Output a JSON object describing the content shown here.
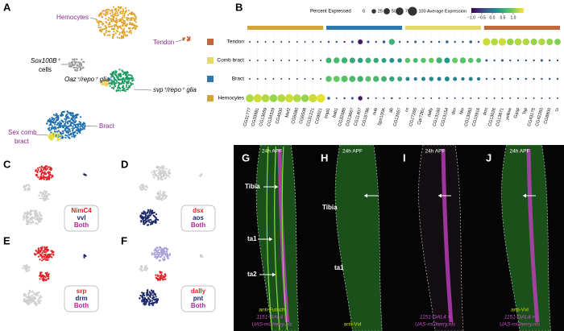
{
  "panel_labels": [
    "A",
    "B",
    "C",
    "D",
    "E",
    "F",
    "G",
    "H",
    "I",
    "J"
  ],
  "umap": {
    "hemocytes": "Hemocytes",
    "tendon": "Tendon",
    "sox": [
      "Sox100B⁺",
      "cells"
    ],
    "oaz_glia": "Oaz⁺/repo⁺ glia",
    "svp_glia": "svp⁺/repo⁺ glia",
    "sex_comb": [
      "Sex comb",
      "bract"
    ],
    "bract": "Bract"
  },
  "feature_plots": [
    {
      "genes": [
        {
          "name": "NimC4",
          "color": "#e32227"
        },
        {
          "name": "vvl",
          "color": "#1c2a6a"
        }
      ],
      "both": {
        "name": "Both",
        "color": "#b3238f"
      }
    },
    {
      "genes": [
        {
          "name": "dsx",
          "color": "#e32227"
        },
        {
          "name": "aos",
          "color": "#1c2a6a"
        }
      ],
      "both": {
        "name": "Both",
        "color": "#b3238f"
      }
    },
    {
      "genes": [
        {
          "name": "srp",
          "color": "#e32227"
        },
        {
          "name": "drm",
          "color": "#1c2a6a"
        }
      ],
      "both": {
        "name": "Both",
        "color": "#b3238f"
      }
    },
    {
      "genes": [
        {
          "name": "dally",
          "color": "#e32227"
        },
        {
          "name": "pnt",
          "color": "#1c2a6a"
        }
      ],
      "both": {
        "name": "Both",
        "color": "#b3238f"
      }
    }
  ],
  "microscopy": [
    {
      "time": "24h APF",
      "annotations": [
        "Tibia",
        "ta1",
        "ta2"
      ],
      "captions": [
        {
          "text": "anti-Futsch",
          "color": "#c8e000"
        },
        {
          "text": "1151-GAL4 >",
          "color": "#d050d0"
        },
        {
          "text": "UAS-mCherry.nls",
          "color": "#d050d0"
        }
      ]
    },
    {
      "time": "24h APF",
      "annotations": [
        "Tibia",
        "ta1"
      ],
      "captions": [
        {
          "text": "anti-Vvl",
          "color": "#c8e000"
        }
      ]
    },
    {
      "time": "24h APF",
      "annotations": [],
      "captions": [
        {
          "text": "1151-GAL4 >",
          "color": "#d050d0"
        },
        {
          "text": "UAS-mCherry.nls",
          "color": "#d050d0"
        }
      ]
    },
    {
      "time": "24h APF",
      "annotations": [],
      "captions": [
        {
          "text": "anti-Vvl",
          "color": "#c8e000"
        },
        {
          "text": "1151-GAL4 >",
          "color": "#d050d0"
        },
        {
          "text": "UAS-mCherry.nls",
          "color": "#d050d0"
        }
      ]
    }
  ],
  "chart_data": {
    "type": "dotplot",
    "size_title": "Percent Expressed",
    "color_title": "Average Expression",
    "size_ticks": [
      0,
      25,
      50,
      75,
      100
    ],
    "size_lim": [
      0,
      100
    ],
    "color_ticks": [
      {
        "value": -1,
        "label": "−1.0"
      },
      {
        "value": -0.5,
        "label": "−0.5"
      },
      {
        "value": 0,
        "label": "0.0"
      },
      {
        "value": 0.5,
        "label": "0.5"
      },
      {
        "value": 1,
        "label": "1.0"
      }
    ],
    "color_lim": [
      -1,
      1.5
    ],
    "colormap": [
      "#440154",
      "#3b528b",
      "#21918c",
      "#5ec962",
      "#fde725"
    ],
    "blocks": [
      {
        "color": "#d4a43c",
        "genes": [
          "CG31777",
          "CG33981",
          "CG13659",
          "CG34329",
          "CG4500",
          "Mef2",
          "CG5080",
          "CG6508",
          "CG31221",
          "CG9021"
        ]
      },
      {
        "color": "#2e78ad",
        "genes": [
          "Impl1",
          "bab1",
          "CG32085",
          "CG13667",
          "CG11407",
          "CG15786",
          "nub",
          "Spn100A",
          "ab",
          "CG12057"
        ]
      },
      {
        "color": "#e2d96a",
        "genes": [
          "rn",
          "CG17265",
          "Cpr72Ec",
          "dally",
          "CG13160",
          "CG13154",
          "dsx",
          "Ntx",
          "CG13083",
          "CG10916"
        ]
      },
      {
        "color": "#c06a3a",
        "genes": [
          "drm",
          "CG13026",
          "CG13871",
          "yellow",
          "Gasp",
          "Tsp",
          "CG43175",
          "CG42260",
          "CG8800",
          "tx"
        ]
      }
    ],
    "rows": [
      {
        "name": "Tendon",
        "color": "#c06a3a",
        "percent": [
          3,
          3,
          3,
          3,
          3,
          3,
          3,
          3,
          3,
          3,
          5,
          5,
          5,
          8,
          30,
          8,
          5,
          10,
          45,
          5,
          5,
          8,
          5,
          5,
          5,
          10,
          5,
          5,
          10,
          5,
          70,
          65,
          70,
          60,
          65,
          60,
          55,
          60,
          55,
          50
        ],
        "expression": [
          -0.6,
          -0.6,
          -0.6,
          -0.6,
          -0.6,
          -0.6,
          -0.6,
          -0.6,
          -0.6,
          -0.6,
          -0.4,
          -0.4,
          -0.5,
          -0.3,
          -0.8,
          -0.3,
          -0.4,
          -0.2,
          0.6,
          -0.4,
          -0.4,
          -0.3,
          -0.4,
          -0.4,
          -0.4,
          -0.2,
          -0.4,
          -0.4,
          -0.3,
          -0.4,
          1.3,
          1.2,
          1.3,
          1.1,
          1.2,
          1.2,
          1.1,
          1.2,
          1.1,
          1.0
        ]
      },
      {
        "name": "Comb bract",
        "color": "#e2d96a",
        "percent": [
          3,
          3,
          3,
          3,
          3,
          3,
          3,
          3,
          3,
          3,
          40,
          45,
          45,
          40,
          35,
          40,
          35,
          30,
          30,
          25,
          35,
          30,
          35,
          35,
          45,
          40,
          40,
          45,
          35,
          30,
          8,
          5,
          8,
          5,
          5,
          5,
          5,
          8,
          5,
          5
        ],
        "expression": [
          -0.6,
          -0.6,
          -0.6,
          -0.6,
          -0.6,
          -0.6,
          -0.6,
          -0.6,
          -0.6,
          -0.6,
          0.6,
          0.7,
          0.6,
          0.5,
          0.4,
          0.6,
          0.5,
          0.4,
          0.3,
          0.3,
          0.8,
          0.7,
          0.8,
          0.9,
          0.6,
          0.3,
          0.9,
          0.8,
          0.8,
          0.7,
          -0.3,
          -0.4,
          -0.3,
          -0.4,
          -0.4,
          -0.4,
          -0.4,
          -0.3,
          -0.4,
          -0.4
        ]
      },
      {
        "name": "Bract",
        "color": "#2e78ad",
        "percent": [
          3,
          3,
          3,
          3,
          3,
          3,
          3,
          3,
          3,
          3,
          45,
          50,
          55,
          50,
          45,
          40,
          45,
          40,
          35,
          30,
          20,
          15,
          20,
          25,
          20,
          30,
          20,
          15,
          20,
          15,
          5,
          5,
          5,
          5,
          5,
          5,
          5,
          5,
          5,
          5
        ],
        "expression": [
          -0.6,
          -0.6,
          -0.6,
          -0.6,
          -0.6,
          -0.6,
          -0.6,
          -0.6,
          -0.6,
          -0.6,
          0.8,
          0.9,
          0.8,
          0.7,
          0.6,
          0.8,
          0.7,
          0.6,
          0.5,
          0.5,
          0.1,
          0.0,
          0.1,
          0.2,
          0.0,
          0.2,
          0.1,
          0.0,
          0.1,
          0.0,
          -0.4,
          -0.4,
          -0.4,
          -0.4,
          -0.4,
          -0.4,
          -0.4,
          -0.4,
          -0.4,
          -0.4
        ]
      },
      {
        "name": "Hemocytes",
        "color": "#d4a43c",
        "percent": [
          80,
          85,
          80,
          75,
          80,
          85,
          80,
          75,
          85,
          90,
          10,
          3,
          5,
          8,
          25,
          5,
          3,
          3,
          5,
          3,
          3,
          3,
          3,
          3,
          3,
          3,
          3,
          3,
          3,
          3,
          3,
          3,
          3,
          3,
          3,
          3,
          3,
          3,
          3,
          3
        ],
        "expression": [
          1.2,
          1.3,
          1.2,
          1.1,
          1.2,
          1.3,
          1.2,
          1.1,
          1.3,
          1.4,
          -0.2,
          -0.6,
          -0.5,
          -0.3,
          -0.8,
          -0.5,
          -0.6,
          -0.6,
          -0.5,
          -0.6,
          -0.6,
          -0.6,
          -0.6,
          -0.6,
          -0.6,
          -0.6,
          -0.6,
          -0.6,
          -0.6,
          -0.6,
          -0.6,
          -0.6,
          -0.6,
          -0.6,
          -0.6,
          -0.6,
          -0.6,
          -0.6,
          -0.6,
          -0.6
        ]
      }
    ]
  }
}
